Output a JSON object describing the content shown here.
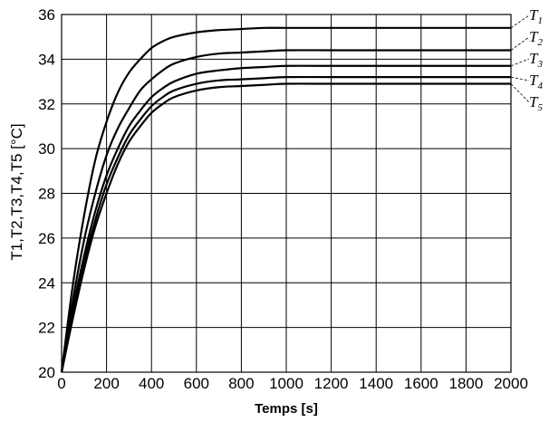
{
  "chart_data": {
    "type": "line",
    "title": "",
    "xlabel": "Temps [s]",
    "ylabel": "T1,T2,T3,T4,T5 [°C]",
    "xlim": [
      0,
      2000
    ],
    "ylim": [
      20,
      36
    ],
    "grid": true,
    "xticks": [
      "0",
      "200",
      "400",
      "600",
      "800",
      "1000",
      "1200",
      "1400",
      "1600",
      "1800",
      "2000"
    ],
    "yticks": [
      "20",
      "22",
      "24",
      "26",
      "28",
      "30",
      "32",
      "34",
      "36"
    ],
    "x": [
      0,
      50,
      100,
      150,
      200,
      250,
      300,
      350,
      400,
      450,
      500,
      600,
      700,
      800,
      900,
      1000,
      1200,
      1400,
      1600,
      1800,
      2000
    ],
    "series": [
      {
        "label": "T",
        "sub": "1",
        "values": [
          20.0,
          23.9,
          27.0,
          29.5,
          31.2,
          32.5,
          33.4,
          34.0,
          34.5,
          34.8,
          35.0,
          35.2,
          35.3,
          35.35,
          35.4,
          35.4,
          35.4,
          35.4,
          35.4,
          35.4,
          35.4
        ]
      },
      {
        "label": "T",
        "sub": "2",
        "values": [
          20.0,
          23.2,
          25.9,
          28.0,
          29.7,
          30.9,
          31.8,
          32.6,
          33.1,
          33.5,
          33.8,
          34.1,
          34.25,
          34.3,
          34.35,
          34.4,
          34.4,
          34.4,
          34.4,
          34.4,
          34.4
        ]
      },
      {
        "label": "T",
        "sub": "3",
        "values": [
          20.0,
          22.8,
          25.2,
          27.2,
          28.8,
          30.0,
          31.0,
          31.7,
          32.3,
          32.7,
          33.0,
          33.35,
          33.5,
          33.6,
          33.65,
          33.7,
          33.7,
          33.7,
          33.7,
          33.7,
          33.7
        ]
      },
      {
        "label": "T",
        "sub": "4",
        "values": [
          20.0,
          22.6,
          24.9,
          26.8,
          28.4,
          29.6,
          30.6,
          31.3,
          31.9,
          32.3,
          32.6,
          32.9,
          33.05,
          33.1,
          33.15,
          33.2,
          33.2,
          33.2,
          33.2,
          33.2,
          33.2
        ]
      },
      {
        "label": "T",
        "sub": "5",
        "values": [
          20.0,
          22.4,
          24.6,
          26.5,
          28.0,
          29.3,
          30.3,
          31.0,
          31.6,
          32.0,
          32.3,
          32.6,
          32.75,
          32.8,
          32.85,
          32.9,
          32.9,
          32.9,
          32.9,
          32.9,
          32.9
        ]
      }
    ]
  }
}
